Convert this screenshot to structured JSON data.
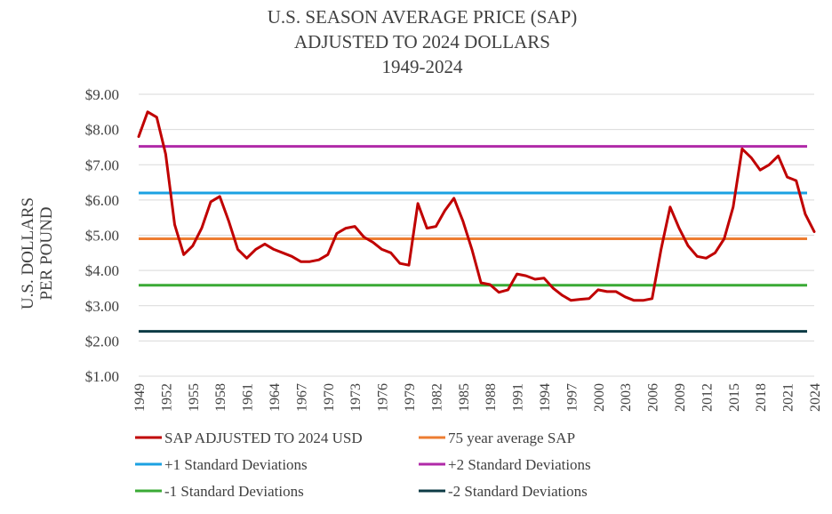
{
  "chart_data": {
    "type": "line",
    "title_lines": [
      "U.S. SEASON AVERAGE PRICE (SAP)",
      "ADJUSTED TO 2024 DOLLARS",
      "1949-2024"
    ],
    "ylabel_lines": [
      "U.S. DOLLARS",
      "PER POUND"
    ],
    "xlabel": "",
    "ylim": [
      1,
      9
    ],
    "xlim": [
      1949,
      2024
    ],
    "y_ticks": [
      "$1.00",
      "$2.00",
      "$3.00",
      "$4.00",
      "$5.00",
      "$6.00",
      "$7.00",
      "$8.00",
      "$9.00"
    ],
    "x_ticks": [
      1949,
      1952,
      1955,
      1958,
      1961,
      1964,
      1967,
      1970,
      1973,
      1976,
      1979,
      1982,
      1985,
      1988,
      1991,
      1994,
      1997,
      2000,
      2003,
      2006,
      2009,
      2012,
      2015,
      2018,
      2021,
      2024
    ],
    "grid": true,
    "legend_position": "bottom",
    "series": [
      {
        "name": "SAP ADJUSTED TO 2024 USD",
        "color": "#c00000",
        "x": [
          1949,
          1950,
          1951,
          1952,
          1953,
          1954,
          1955,
          1956,
          1957,
          1958,
          1959,
          1960,
          1961,
          1962,
          1963,
          1964,
          1965,
          1966,
          1967,
          1968,
          1969,
          1970,
          1971,
          1972,
          1973,
          1974,
          1975,
          1976,
          1977,
          1978,
          1979,
          1980,
          1981,
          1982,
          1983,
          1984,
          1985,
          1986,
          1987,
          1988,
          1989,
          1990,
          1991,
          1992,
          1993,
          1994,
          1995,
          1996,
          1997,
          1998,
          1999,
          2000,
          2001,
          2002,
          2003,
          2004,
          2005,
          2006,
          2007,
          2008,
          2009,
          2010,
          2011,
          2012,
          2013,
          2014,
          2015,
          2016,
          2017,
          2018,
          2019,
          2020,
          2021,
          2022,
          2023,
          2024
        ],
        "y": [
          7.8,
          8.5,
          8.35,
          7.3,
          5.3,
          4.45,
          4.7,
          5.2,
          5.95,
          6.1,
          5.4,
          4.6,
          4.35,
          4.6,
          4.75,
          4.6,
          4.5,
          4.4,
          4.25,
          4.25,
          4.3,
          4.45,
          5.05,
          5.2,
          5.25,
          4.95,
          4.8,
          4.6,
          4.5,
          4.2,
          4.15,
          5.9,
          5.2,
          5.25,
          5.7,
          6.05,
          5.4,
          4.6,
          3.65,
          3.6,
          3.38,
          3.45,
          3.9,
          3.85,
          3.75,
          3.78,
          3.5,
          3.3,
          3.15,
          3.18,
          3.2,
          3.45,
          3.4,
          3.4,
          3.25,
          3.15,
          3.15,
          3.2,
          4.6,
          5.8,
          5.2,
          4.7,
          4.4,
          4.35,
          4.5,
          4.9,
          5.8,
          7.45,
          7.2,
          6.85,
          7.0,
          7.25,
          6.65,
          6.55,
          5.6,
          5.1
        ]
      },
      {
        "name": "75 year average SAP",
        "color": "#ed7d31",
        "value": 4.9
      },
      {
        "name": "+1 Standard Deviations",
        "color": "#1ba1e2",
        "value": 6.2
      },
      {
        "name": "+2 Standard Deviations",
        "color": "#b02aa8",
        "value": 7.52
      },
      {
        "name": "-1 Standard Deviations",
        "color": "#3aaa35",
        "value": 3.58
      },
      {
        "name": "-2 Standard Deviations",
        "color": "#0d3b45",
        "value": 2.27
      }
    ]
  }
}
